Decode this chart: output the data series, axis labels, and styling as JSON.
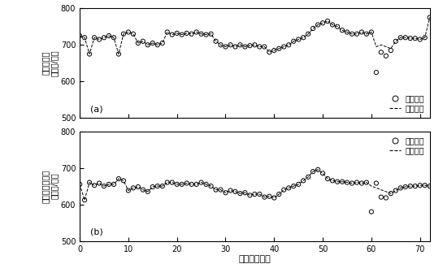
{
  "ylabel_a_line1": "主蒸汽流量",
  "ylabel_a_line2": "（兆焦/秒）",
  "ylabel_b_line1": "热再热蒸汽流量",
  "ylabel_b_line2": "（兆焦/秒）",
  "xlabel": "时间（小时）",
  "label_actual": "实际输出",
  "label_model": "模型预报",
  "panel_a_label": "(a)",
  "panel_b_label": "(b)",
  "ylim": [
    500,
    800
  ],
  "xlim": [
    0,
    72
  ],
  "yticks": [
    500,
    600,
    700,
    800
  ],
  "xticks": [
    0,
    10,
    20,
    30,
    40,
    50,
    60,
    70
  ],
  "background_color": "#ffffff",
  "seed": 12
}
